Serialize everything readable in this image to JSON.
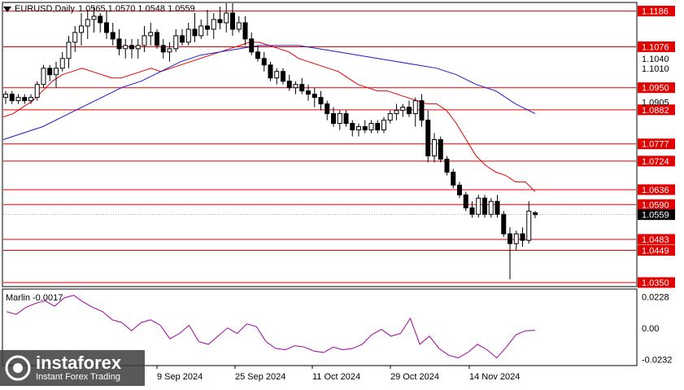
{
  "header": {
    "symbol": "EURUSD,Daily",
    "ohlc": "1.0565 1.0570 1.0548 1.0559"
  },
  "indicator": {
    "label": "Marlin -0.0017",
    "levels": [
      "0.0228",
      "0.00",
      "-0.0232"
    ]
  },
  "logo": {
    "name": "instaforex",
    "tagline": "Instant Forex Trading"
  },
  "colors": {
    "level_line": "#e00000",
    "ma_fast": "#e00000",
    "ma_slow": "#1a1acc",
    "osc": "#a000a0",
    "candle": "#000000"
  },
  "icons": [
    "dropdown-triangle-icon",
    "instaforex-logo-icon"
  ],
  "chart_data": [
    {
      "type": "candlestick",
      "title": "EURUSD,Daily",
      "x_tick_labels": [
        "9 Sep 2024",
        "25 Sep 2024",
        "11 Oct 2024",
        "29 Oct 2024",
        "14 Nov 2024"
      ],
      "level_labels": [
        "1.1186",
        "1.1076",
        "1.0950",
        "1.0882",
        "1.0777",
        "1.0724",
        "1.0636",
        "1.0590",
        "1.0483",
        "1.0449",
        "1.0350"
      ],
      "levels": [
        1.1186,
        1.1076,
        1.095,
        1.0882,
        1.0777,
        1.0724,
        1.0636,
        1.059,
        1.0483,
        1.0449,
        1.035
      ],
      "current_price": "1.0559",
      "extra_ticks": [
        "1.1040",
        "1.1010",
        "1.0905"
      ],
      "ylim": [
        1.034,
        1.121
      ],
      "candles": [
        [
          1.092,
          1.094,
          1.09,
          1.093
        ],
        [
          1.093,
          1.094,
          1.09,
          1.091
        ],
        [
          1.091,
          1.093,
          1.09,
          1.092
        ],
        [
          1.092,
          1.093,
          1.09,
          1.091
        ],
        [
          1.091,
          1.093,
          1.09,
          1.092
        ],
        [
          1.092,
          1.097,
          1.091,
          1.096
        ],
        [
          1.096,
          1.102,
          1.095,
          1.101
        ],
        [
          1.101,
          1.102,
          1.097,
          1.099
        ],
        [
          1.099,
          1.103,
          1.095,
          1.101
        ],
        [
          1.101,
          1.106,
          1.1,
          1.104
        ],
        [
          1.104,
          1.111,
          1.101,
          1.109
        ],
        [
          1.109,
          1.114,
          1.106,
          1.112
        ],
        [
          1.112,
          1.118,
          1.108,
          1.114
        ],
        [
          1.114,
          1.119,
          1.11,
          1.116
        ],
        [
          1.116,
          1.12,
          1.112,
          1.117
        ],
        [
          1.117,
          1.118,
          1.112,
          1.115
        ],
        [
          1.115,
          1.119,
          1.11,
          1.112
        ],
        [
          1.112,
          1.115,
          1.108,
          1.11
        ],
        [
          1.11,
          1.113,
          1.105,
          1.107
        ],
        [
          1.107,
          1.11,
          1.104,
          1.108
        ],
        [
          1.108,
          1.11,
          1.104,
          1.107
        ],
        [
          1.107,
          1.11,
          1.104,
          1.108
        ],
        [
          1.108,
          1.114,
          1.106,
          1.111
        ],
        [
          1.111,
          1.115,
          1.108,
          1.112
        ],
        [
          1.112,
          1.113,
          1.107,
          1.108
        ],
        [
          1.108,
          1.11,
          1.104,
          1.106
        ],
        [
          1.106,
          1.109,
          1.103,
          1.107
        ],
        [
          1.107,
          1.113,
          1.106,
          1.111
        ],
        [
          1.111,
          1.113,
          1.108,
          1.109
        ],
        [
          1.109,
          1.115,
          1.108,
          1.113
        ],
        [
          1.113,
          1.118,
          1.109,
          1.111
        ],
        [
          1.111,
          1.116,
          1.11,
          1.114
        ],
        [
          1.114,
          1.119,
          1.111,
          1.113
        ],
        [
          1.113,
          1.118,
          1.11,
          1.116
        ],
        [
          1.116,
          1.12,
          1.113,
          1.115
        ],
        [
          1.115,
          1.121,
          1.112,
          1.118
        ],
        [
          1.118,
          1.121,
          1.111,
          1.113
        ],
        [
          1.113,
          1.117,
          1.112,
          1.115
        ],
        [
          1.115,
          1.117,
          1.108,
          1.11
        ],
        [
          1.11,
          1.112,
          1.105,
          1.106
        ],
        [
          1.106,
          1.108,
          1.103,
          1.104
        ],
        [
          1.104,
          1.106,
          1.1,
          1.102
        ],
        [
          1.102,
          1.103,
          1.097,
          1.098
        ],
        [
          1.098,
          1.101,
          1.096,
          1.1
        ],
        [
          1.1,
          1.101,
          1.096,
          1.097
        ],
        [
          1.097,
          1.099,
          1.094,
          1.095
        ],
        [
          1.095,
          1.097,
          1.093,
          1.096
        ],
        [
          1.096,
          1.098,
          1.093,
          1.094
        ],
        [
          1.094,
          1.096,
          1.091,
          1.093
        ],
        [
          1.093,
          1.095,
          1.089,
          1.092
        ],
        [
          1.092,
          1.094,
          1.088,
          1.09
        ],
        [
          1.09,
          1.091,
          1.085,
          1.087
        ],
        [
          1.087,
          1.089,
          1.083,
          1.084
        ],
        [
          1.084,
          1.088,
          1.082,
          1.087
        ],
        [
          1.087,
          1.088,
          1.083,
          1.084
        ],
        [
          1.084,
          1.085,
          1.08,
          1.082
        ],
        [
          1.082,
          1.084,
          1.08,
          1.083
        ],
        [
          1.083,
          1.085,
          1.081,
          1.082
        ],
        [
          1.082,
          1.085,
          1.081,
          1.084
        ],
        [
          1.084,
          1.085,
          1.081,
          1.082
        ],
        [
          1.082,
          1.086,
          1.081,
          1.085
        ],
        [
          1.085,
          1.088,
          1.084,
          1.087
        ],
        [
          1.087,
          1.09,
          1.085,
          1.088
        ],
        [
          1.088,
          1.09,
          1.086,
          1.089
        ],
        [
          1.089,
          1.091,
          1.086,
          1.087
        ],
        [
          1.087,
          1.092,
          1.083,
          1.091
        ],
        [
          1.091,
          1.093,
          1.083,
          1.085
        ],
        [
          1.085,
          1.088,
          1.072,
          1.074
        ],
        [
          1.074,
          1.081,
          1.072,
          1.079
        ],
        [
          1.079,
          1.08,
          1.072,
          1.073
        ],
        [
          1.073,
          1.074,
          1.068,
          1.069
        ],
        [
          1.069,
          1.07,
          1.064,
          1.065
        ],
        [
          1.065,
          1.066,
          1.061,
          1.062
        ],
        [
          1.062,
          1.063,
          1.057,
          1.058
        ],
        [
          1.058,
          1.06,
          1.055,
          1.056
        ],
        [
          1.056,
          1.062,
          1.055,
          1.061
        ],
        [
          1.061,
          1.062,
          1.055,
          1.056
        ],
        [
          1.056,
          1.061,
          1.055,
          1.06
        ],
        [
          1.06,
          1.062,
          1.055,
          1.056
        ],
        [
          1.056,
          1.057,
          1.049,
          1.05
        ],
        [
          1.05,
          1.052,
          1.036,
          1.047
        ],
        [
          1.047,
          1.051,
          1.045,
          1.05
        ],
        [
          1.05,
          1.052,
          1.046,
          1.048
        ],
        [
          1.048,
          1.06,
          1.047,
          1.057
        ],
        [
          1.0565,
          1.057,
          1.0548,
          1.0559
        ]
      ],
      "ma_fast": [
        1.086,
        1.087,
        1.089,
        1.091,
        1.094,
        1.097,
        1.099,
        1.1,
        1.101,
        1.1,
        1.099,
        1.098,
        1.098,
        1.099,
        1.1,
        1.101,
        1.1,
        1.101,
        1.102,
        1.103,
        1.104,
        1.105,
        1.106,
        1.107,
        1.108,
        1.109,
        1.109,
        1.108,
        1.107,
        1.106,
        1.104,
        1.103,
        1.102,
        1.101,
        1.1,
        1.098,
        1.096,
        1.095,
        1.094,
        1.094,
        1.093,
        1.092,
        1.091,
        1.09,
        1.09,
        1.088,
        1.084,
        1.079,
        1.074,
        1.071,
        1.069,
        1.068,
        1.066,
        1.066,
        1.063
      ],
      "ma_slow": [
        1.079,
        1.081,
        1.083,
        1.086,
        1.089,
        1.092,
        1.095,
        1.097,
        1.1,
        1.103,
        1.105,
        1.106,
        1.107,
        1.108,
        1.108,
        1.108,
        1.107,
        1.106,
        1.105,
        1.104,
        1.103,
        1.102,
        1.101,
        1.099,
        1.096,
        1.094,
        1.09,
        1.087
      ]
    },
    {
      "type": "line",
      "title": "Marlin -0.0017",
      "series": [
        {
          "name": "Marlin",
          "values": [
            0.012,
            0.01,
            0.015,
            0.018,
            0.02,
            0.016,
            0.022,
            0.024,
            0.019,
            0.015,
            0.012,
            0.006,
            0.004,
            -0.002,
            0.004,
            0.006,
            0.002,
            -0.008,
            -0.004,
            0.002,
            -0.01,
            -0.012,
            -0.006,
            0.0,
            -0.004,
            0.003,
            0.001,
            -0.01,
            -0.015,
            -0.016,
            -0.013,
            -0.014,
            -0.017,
            -0.018,
            -0.014,
            -0.016,
            -0.015,
            -0.012,
            -0.005,
            -0.001,
            -0.006,
            -0.004,
            0.007,
            -0.012,
            -0.006,
            -0.015,
            -0.02,
            -0.022,
            -0.018,
            -0.012,
            -0.016,
            -0.022,
            -0.014,
            -0.005,
            -0.002,
            -0.0017
          ]
        }
      ],
      "ylim": [
        -0.027,
        0.028
      ],
      "y_tick_labels": [
        "0.0228",
        "0.00",
        "-0.0232"
      ]
    }
  ]
}
